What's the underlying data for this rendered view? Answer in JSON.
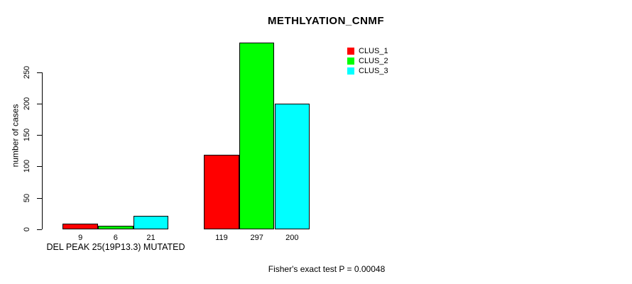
{
  "page": {
    "background": "#ffffff",
    "text_color": "#000000"
  },
  "chart_data": {
    "type": "bar",
    "title": "METHLYATION_CNMF",
    "ylabel": "number of cases",
    "xlabel": "DEL PEAK 25(19P13.3) MUTATED",
    "footer": "Fisher's exact test P = 0.00048",
    "series": [
      {
        "name": "CLUS_1",
        "color": "#ff0000",
        "values": [
          9,
          119
        ]
      },
      {
        "name": "CLUS_2",
        "color": "#00ff00",
        "values": [
          6,
          297
        ]
      },
      {
        "name": "CLUS_3",
        "color": "#00ffff",
        "values": [
          21,
          200
        ]
      }
    ],
    "groups_count": 2,
    "bar_value_labels": [
      [
        9,
        6,
        21
      ],
      [
        119,
        297,
        200
      ]
    ],
    "yticks": [
      0,
      50,
      100,
      150,
      200,
      250
    ],
    "ylim": [
      0,
      297
    ],
    "bar_border_color": "#000000",
    "legend_position": "top-right",
    "legend_entries": [
      "CLUS_1",
      "CLUS_2",
      "CLUS_3"
    ],
    "grid": false
  }
}
